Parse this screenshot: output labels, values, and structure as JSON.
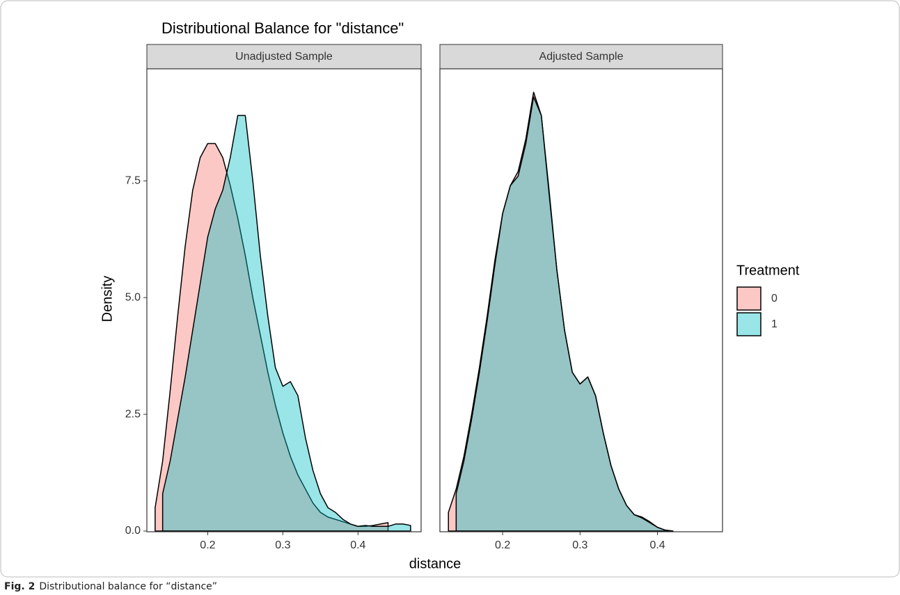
{
  "chart_data": [
    {
      "type": "area",
      "title": "Distributional Balance for \"distance\"",
      "subtitle": "Unadjusted Sample",
      "ylabel": "Density",
      "xlabel": "distance",
      "legend_title": "Treatment",
      "x": [
        0.13,
        0.14,
        0.15,
        0.16,
        0.17,
        0.18,
        0.19,
        0.2,
        0.21,
        0.22,
        0.23,
        0.24,
        0.25,
        0.26,
        0.27,
        0.28,
        0.29,
        0.3,
        0.31,
        0.32,
        0.33,
        0.34,
        0.35,
        0.36,
        0.37,
        0.38,
        0.39,
        0.4,
        0.41,
        0.42,
        0.43,
        0.44,
        0.45,
        0.46,
        0.47
      ],
      "series": [
        {
          "name": "0",
          "color": "#F8766D",
          "values": [
            0.5,
            1.5,
            3.0,
            4.6,
            6.1,
            7.3,
            8.0,
            8.3,
            8.3,
            8.0,
            7.4,
            6.7,
            5.9,
            5.0,
            4.2,
            3.4,
            2.7,
            2.1,
            1.6,
            1.2,
            0.9,
            0.6,
            0.4,
            0.3,
            0.25,
            0.2,
            0.15,
            0.1,
            0.1,
            0.12,
            0.15,
            0.18,
            null,
            null,
            null
          ]
        },
        {
          "name": "1",
          "color": "#00BFC4",
          "values": [
            null,
            0.8,
            1.5,
            2.4,
            3.3,
            4.3,
            5.3,
            6.3,
            6.9,
            7.3,
            8.0,
            8.9,
            8.9,
            7.5,
            5.9,
            4.6,
            3.5,
            3.1,
            3.2,
            2.9,
            2.0,
            1.3,
            0.8,
            0.5,
            0.4,
            0.25,
            0.15,
            0.1,
            0.12,
            0.1,
            0.1,
            0.1,
            0.15,
            0.15,
            0.12
          ]
        }
      ],
      "xlim": [
        0.119,
        0.484
      ],
      "xticks": [
        0.2,
        0.3,
        0.4
      ],
      "ylim": [
        0,
        9.9
      ],
      "yticks": [
        {
          "value": 0,
          "label": "0.0"
        },
        2.5,
        {
          "value": 5,
          "label": "5.0"
        },
        7.5
      ]
    },
    {
      "type": "area",
      "subtitle": "Adjusted Sample",
      "x": [
        0.13,
        0.14,
        0.15,
        0.16,
        0.17,
        0.18,
        0.19,
        0.2,
        0.21,
        0.22,
        0.23,
        0.24,
        0.25,
        0.26,
        0.27,
        0.28,
        0.29,
        0.3,
        0.31,
        0.32,
        0.33,
        0.34,
        0.35,
        0.36,
        0.37,
        0.38,
        0.39,
        0.4,
        0.41,
        0.42
      ],
      "series": [
        {
          "name": "0",
          "color": "#F8766D",
          "values": [
            0.4,
            0.9,
            1.6,
            2.5,
            3.5,
            4.6,
            5.8,
            6.8,
            7.4,
            7.7,
            8.4,
            9.4,
            8.9,
            7.2,
            5.6,
            4.3,
            3.4,
            3.15,
            3.3,
            2.9,
            2.1,
            1.4,
            0.9,
            0.55,
            0.35,
            0.3,
            0.2,
            0.08,
            0.02,
            0
          ]
        },
        {
          "name": "1",
          "color": "#00BFC4",
          "values": [
            null,
            0.8,
            1.5,
            2.4,
            3.4,
            4.5,
            5.7,
            6.8,
            7.4,
            7.6,
            8.3,
            9.3,
            8.9,
            7.3,
            5.6,
            4.3,
            3.4,
            3.15,
            3.3,
            2.9,
            2.1,
            1.4,
            0.9,
            0.55,
            0.35,
            0.28,
            0.18,
            0.08,
            0.02,
            0
          ]
        }
      ],
      "xlim": [
        0.119,
        0.484
      ],
      "xticks": [
        0.2,
        0.3,
        0.4
      ],
      "ylim": [
        0,
        9.9
      ]
    }
  ],
  "caption": {
    "label": "Fig. 2",
    "text": "Distributional balance for “distance”"
  }
}
